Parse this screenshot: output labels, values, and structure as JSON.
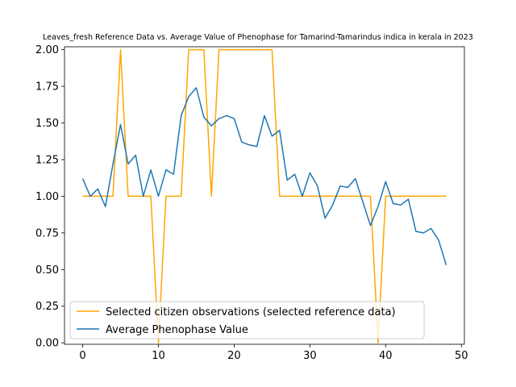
{
  "chart_data": {
    "type": "line",
    "title": "Leaves_fresh Reference Data vs. Average Value of Phenophase for Tamarind-Tamarindus indica in kerala in 2023",
    "xlabel": "",
    "ylabel": "",
    "xlim": [
      -2.4,
      50.4
    ],
    "ylim": [
      -0.01,
      2.02
    ],
    "xticks": [
      0,
      10,
      20,
      30,
      40,
      50
    ],
    "yticks": [
      0.0,
      0.25,
      0.5,
      0.75,
      1.0,
      1.25,
      1.5,
      1.75,
      2.0
    ],
    "ytick_labels": [
      "0.00",
      "0.25",
      "0.50",
      "0.75",
      "1.00",
      "1.25",
      "1.50",
      "1.75",
      "2.00"
    ],
    "grid": false,
    "legend_position": "lower-left",
    "x": [
      0,
      1,
      2,
      3,
      4,
      5,
      6,
      7,
      8,
      9,
      10,
      11,
      12,
      13,
      14,
      15,
      16,
      17,
      18,
      19,
      20,
      21,
      22,
      23,
      24,
      25,
      26,
      27,
      28,
      29,
      30,
      31,
      32,
      33,
      34,
      35,
      36,
      37,
      38,
      39,
      40,
      41,
      42,
      43,
      44,
      45,
      46,
      47,
      48
    ],
    "series": [
      {
        "name": "Selected citizen observations (selected reference data)",
        "color": "#ffa500",
        "values": [
          1,
          1,
          1,
          1,
          1,
          2,
          1,
          1,
          1,
          1,
          0,
          1,
          1,
          1,
          2,
          2,
          2,
          1,
          2,
          2,
          2,
          2,
          2,
          2,
          2,
          2,
          1,
          1,
          1,
          1,
          1,
          1,
          1,
          1,
          1,
          1,
          1,
          1,
          1,
          0,
          1,
          1,
          1,
          1,
          1,
          1,
          1,
          1,
          1
        ]
      },
      {
        "name": "Average Phenophase Value",
        "color": "#1f77b4",
        "values": [
          1.12,
          1.0,
          1.05,
          0.93,
          1.22,
          1.49,
          1.22,
          1.28,
          1.0,
          1.18,
          1.0,
          1.18,
          1.15,
          1.55,
          1.68,
          1.74,
          1.54,
          1.48,
          1.53,
          1.55,
          1.53,
          1.37,
          1.35,
          1.34,
          1.55,
          1.41,
          1.45,
          1.11,
          1.15,
          1.0,
          1.16,
          1.07,
          0.85,
          0.94,
          1.07,
          1.06,
          1.12,
          0.96,
          0.8,
          0.93,
          1.1,
          0.95,
          0.94,
          0.98,
          0.76,
          0.75,
          0.78,
          0.7,
          0.53
        ]
      }
    ]
  }
}
